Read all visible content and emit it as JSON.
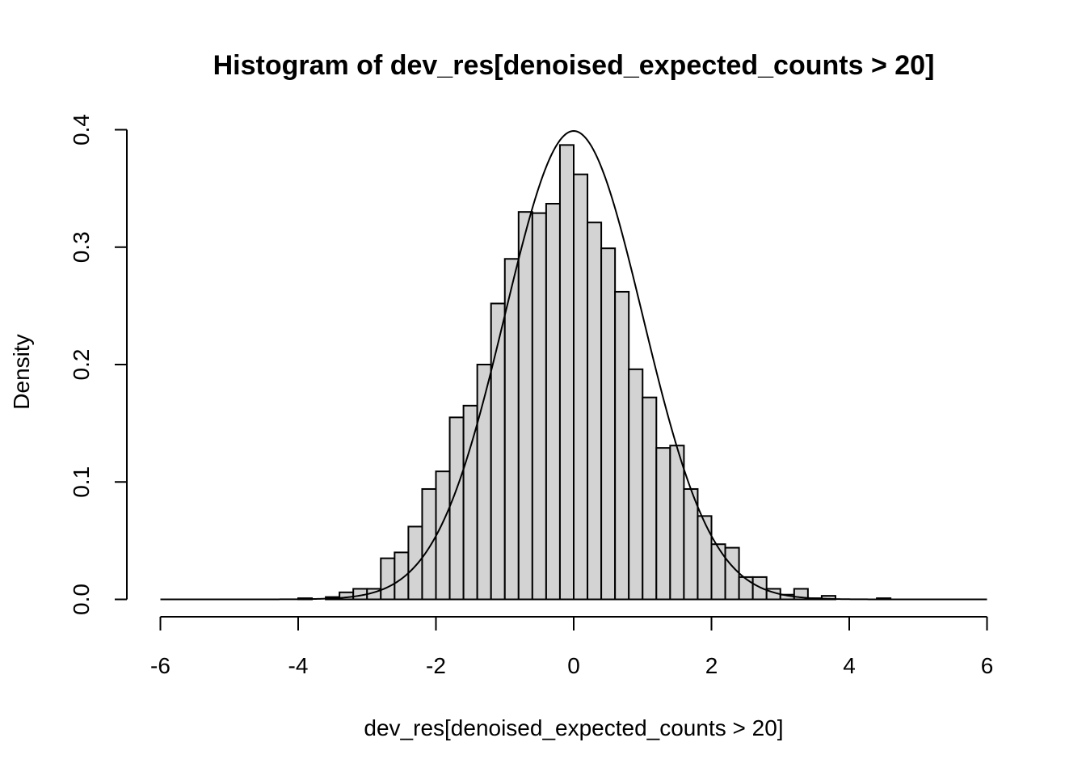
{
  "chart_data": {
    "type": "bar",
    "title": "Histogram of dev_res[denoised_expected_counts > 20]",
    "xlabel": "dev_res[denoised_expected_counts > 20]",
    "ylabel": "Density",
    "xlim": [
      -6,
      6
    ],
    "ylim": [
      0,
      0.4
    ],
    "x_ticks": [
      "-6",
      "-4",
      "-2",
      "0",
      "2",
      "4",
      "6"
    ],
    "y_ticks": [
      "0.0",
      "0.1",
      "0.2",
      "0.3",
      "0.4"
    ],
    "bin_width": 0.2,
    "bins": [
      {
        "start": -6.0,
        "density": 0
      },
      {
        "start": -5.8,
        "density": 0
      },
      {
        "start": -5.6,
        "density": 0
      },
      {
        "start": -5.4,
        "density": 0
      },
      {
        "start": -5.2,
        "density": 0
      },
      {
        "start": -5.0,
        "density": 0
      },
      {
        "start": -4.8,
        "density": 0
      },
      {
        "start": -4.6,
        "density": 0
      },
      {
        "start": -4.4,
        "density": 0
      },
      {
        "start": -4.2,
        "density": 0
      },
      {
        "start": -4.0,
        "density": 0.001
      },
      {
        "start": -3.8,
        "density": 0
      },
      {
        "start": -3.6,
        "density": 0.002
      },
      {
        "start": -3.4,
        "density": 0.006
      },
      {
        "start": -3.2,
        "density": 0.009
      },
      {
        "start": -3.0,
        "density": 0.009
      },
      {
        "start": -2.8,
        "density": 0.035
      },
      {
        "start": -2.6,
        "density": 0.04
      },
      {
        "start": -2.4,
        "density": 0.062
      },
      {
        "start": -2.2,
        "density": 0.094
      },
      {
        "start": -2.0,
        "density": 0.109
      },
      {
        "start": -1.8,
        "density": 0.155
      },
      {
        "start": -1.6,
        "density": 0.165
      },
      {
        "start": -1.4,
        "density": 0.2
      },
      {
        "start": -1.2,
        "density": 0.252
      },
      {
        "start": -1.0,
        "density": 0.29
      },
      {
        "start": -0.8,
        "density": 0.33
      },
      {
        "start": -0.6,
        "density": 0.329
      },
      {
        "start": -0.4,
        "density": 0.337
      },
      {
        "start": -0.2,
        "density": 0.387
      },
      {
        "start": 0.0,
        "density": 0.362
      },
      {
        "start": 0.2,
        "density": 0.321
      },
      {
        "start": 0.4,
        "density": 0.299
      },
      {
        "start": 0.6,
        "density": 0.262
      },
      {
        "start": 0.8,
        "density": 0.196
      },
      {
        "start": 1.0,
        "density": 0.172
      },
      {
        "start": 1.2,
        "density": 0.129
      },
      {
        "start": 1.4,
        "density": 0.131
      },
      {
        "start": 1.6,
        "density": 0.094
      },
      {
        "start": 1.8,
        "density": 0.071
      },
      {
        "start": 2.0,
        "density": 0.047
      },
      {
        "start": 2.2,
        "density": 0.044
      },
      {
        "start": 2.4,
        "density": 0.019
      },
      {
        "start": 2.6,
        "density": 0.019
      },
      {
        "start": 2.8,
        "density": 0.009
      },
      {
        "start": 3.0,
        "density": 0.004
      },
      {
        "start": 3.2,
        "density": 0.009
      },
      {
        "start": 3.4,
        "density": 0.001
      },
      {
        "start": 3.6,
        "density": 0.003
      },
      {
        "start": 3.8,
        "density": 0
      },
      {
        "start": 4.0,
        "density": 0
      },
      {
        "start": 4.2,
        "density": 0
      },
      {
        "start": 4.4,
        "density": 0.001
      },
      {
        "start": 4.6,
        "density": 0
      },
      {
        "start": 4.8,
        "density": 0
      },
      {
        "start": 5.0,
        "density": 0
      },
      {
        "start": 5.2,
        "density": 0
      },
      {
        "start": 5.4,
        "density": 0
      },
      {
        "start": 5.6,
        "density": 0
      },
      {
        "start": 5.8,
        "density": 0
      }
    ],
    "overlay_curve": {
      "type": "line",
      "function": "standard normal density",
      "mean": 0,
      "sd": 1
    },
    "grid": false,
    "legend": "none"
  }
}
